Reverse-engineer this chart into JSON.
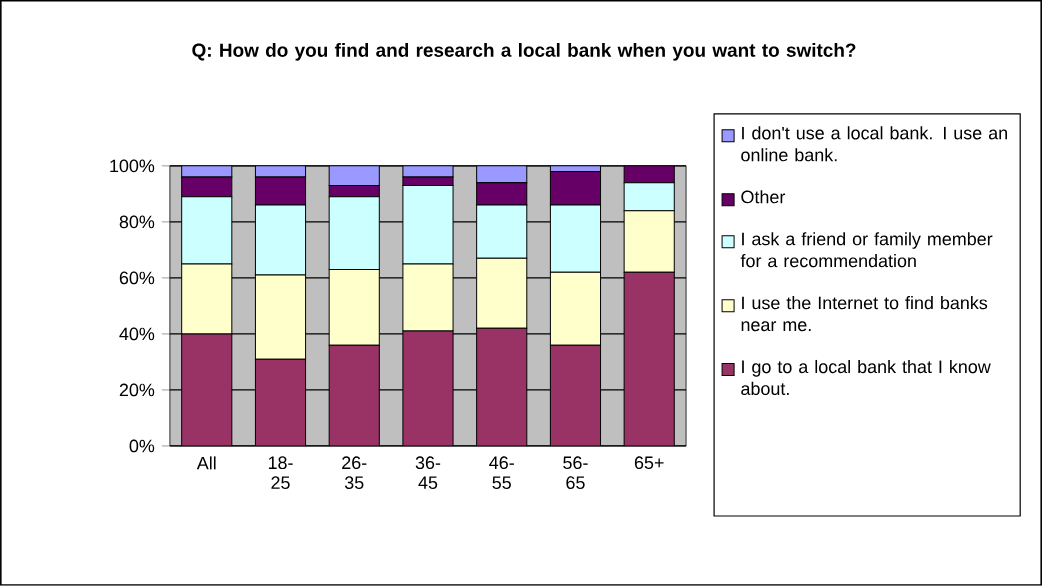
{
  "chart_data": {
    "type": "bar",
    "stacked": true,
    "title": "Q: How do you find and research a local bank when you want to switch?",
    "categories": [
      "All",
      "18-25",
      "26-35",
      "36-45",
      "46-55",
      "56-65",
      "65+"
    ],
    "series": [
      {
        "name": "I go to a local bank that I know about.",
        "color": "#993366",
        "values": [
          40,
          31,
          36,
          41,
          42,
          36,
          62
        ]
      },
      {
        "name": "I use the Internet to find banks near me.",
        "color": "#ffffcc",
        "values": [
          25,
          30,
          27,
          24,
          25,
          26,
          22
        ]
      },
      {
        "name": "I ask a friend or family member for a recommendation",
        "color": "#ccffff",
        "values": [
          24,
          25,
          26,
          28,
          19,
          24,
          10
        ]
      },
      {
        "name": "Other",
        "color": "#660066",
        "values": [
          7,
          10,
          4,
          3,
          8,
          12,
          6
        ]
      },
      {
        "name": "I don't use a local bank. I use an online bank.",
        "color": "#9999ff",
        "values": [
          4,
          4,
          7,
          4,
          6,
          2,
          0
        ]
      }
    ],
    "ylim": [
      0,
      100
    ],
    "yticks": [
      {
        "value": 0,
        "label": "0%"
      },
      {
        "value": 20,
        "label": "20%"
      },
      {
        "value": 40,
        "label": "40%"
      },
      {
        "value": 60,
        "label": "60%"
      },
      {
        "value": 80,
        "label": "80%"
      },
      {
        "value": 100,
        "label": "100%"
      }
    ],
    "grid": "y",
    "legend": "right"
  }
}
